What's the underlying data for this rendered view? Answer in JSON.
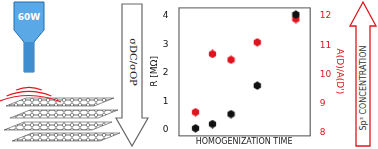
{
  "chart_data": {
    "type": "scatter",
    "xlabel": "HOMOGENIZATION TIME",
    "ylabel": "R [MΩ]",
    "y2label": "A(D)/A(D')",
    "x": [
      1.1,
      2.2,
      3.4,
      5.1,
      7.6
    ],
    "xlim": [
      0,
      8.5
    ],
    "xticks": [],
    "ylim": [
      -0.2,
      4.3
    ],
    "yticks": [
      0,
      1,
      2,
      3,
      4
    ],
    "y2lim": [
      7.9,
      12.3
    ],
    "y2ticks": [
      8,
      9,
      10,
      11,
      12
    ],
    "grid": false,
    "series": [
      {
        "color": "#111111",
        "marker": "hexagon",
        "values": [
          0.05,
          0.2,
          0.55,
          1.55,
          4.05
        ]
      },
      {
        "color": "#e0141e",
        "marker": "hexagon",
        "axis": "y2",
        "values": [
          8.7,
          10.7,
          10.5,
          11.1,
          11.9
        ]
      }
    ]
  },
  "diagram": {
    "sonicator": {
      "label": "60W"
    },
    "left_arrow": {
      "label": "σDC/σOP"
    },
    "right_arrow": {
      "label": "Sp³ CONCENTRATION"
    }
  }
}
